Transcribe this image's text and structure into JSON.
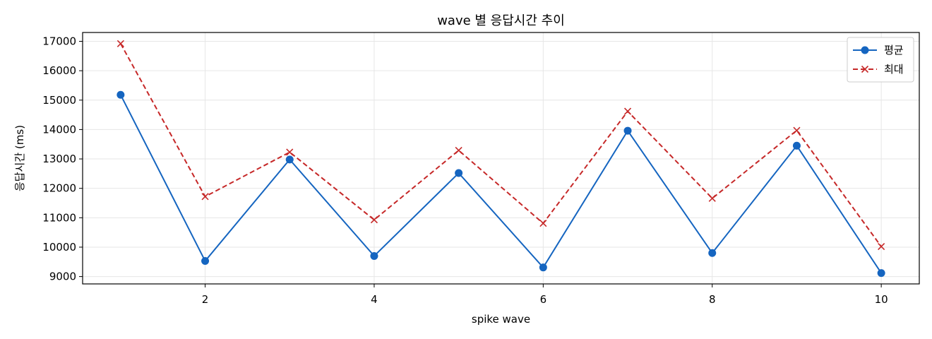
{
  "chart_data": {
    "type": "line",
    "title": "wave 별 응답시간 추이",
    "xlabel": "spike wave",
    "ylabel": "응답시간 (ms)",
    "x": [
      1,
      2,
      3,
      4,
      5,
      6,
      7,
      8,
      9,
      10
    ],
    "xlim": [
      0.55,
      10.45
    ],
    "ylim": [
      8750,
      17300
    ],
    "x_ticks": [
      2,
      4,
      6,
      8,
      10
    ],
    "y_ticks": [
      9000,
      10000,
      11000,
      12000,
      13000,
      14000,
      15000,
      16000,
      17000
    ],
    "grid": true,
    "legend_position": "top-right",
    "series": [
      {
        "name": "평균",
        "color": "#1565c0",
        "marker": "circle",
        "line_style": "solid",
        "values": [
          15180,
          9530,
          12980,
          9700,
          12520,
          9310,
          13960,
          9800,
          13450,
          9120
        ]
      },
      {
        "name": "최대",
        "color": "#c62828",
        "marker": "x",
        "line_style": "dashed",
        "values": [
          16920,
          11720,
          13230,
          10930,
          13290,
          10810,
          14620,
          11660,
          13970,
          10020
        ]
      }
    ]
  }
}
